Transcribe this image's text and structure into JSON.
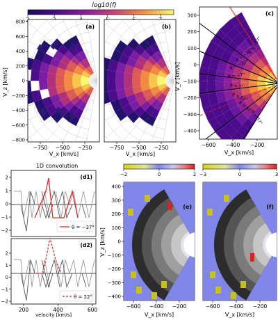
{
  "colors": {
    "viridis_like": [
      "#1a0b5b",
      "#4a0c8a",
      "#7b1ea3",
      "#b1307c",
      "#dc5b52",
      "#f2923a",
      "#f7d33b",
      "#f9f871"
    ],
    "diverge_neg": [
      "#2a2a2a",
      "#6a6a6a",
      "#b5b5b5",
      "#dddddd",
      "#e9e9f8",
      "#7070e0"
    ],
    "diverge_pos": [
      "#7070e0",
      "#d8d878",
      "#d4c832",
      "#c8b200"
    ],
    "accent_red": "#e02020",
    "bg_purple": "#7f86e8"
  },
  "chart_data": [
    {
      "id": "a",
      "type": "heatmap",
      "panel_label": "(a)",
      "title": "",
      "xlabel": "V_x [km/s]",
      "ylabel": "V_z [km/s]",
      "xticks": [
        "−750",
        "−500",
        "−250"
      ],
      "yticks": [
        "800",
        "600",
        "400",
        "200",
        "0",
        "−200",
        "−400",
        "−600",
        "−800"
      ],
      "xlim": [
        -900,
        -150
      ],
      "ylim": [
        -800,
        800
      ],
      "colorbar": {
        "label": "log10(f)",
        "ticks": [
          "2",
          "3",
          "4",
          "5",
          "6",
          "7"
        ],
        "range": [
          2,
          7.5
        ]
      }
    },
    {
      "id": "b",
      "type": "heatmap",
      "panel_label": "(b)",
      "xlabel": "V_x [km/s]",
      "xticks": [
        "−750",
        "−500",
        "−250"
      ]
    },
    {
      "id": "c",
      "type": "heatmap",
      "panel_label": "(c)",
      "xlabel": "V_x [km/s]",
      "ylabel": "V_z [km/s]",
      "xticks": [
        "−600",
        "−400",
        "−200"
      ],
      "yticks": [
        "300",
        "200",
        "100",
        "0",
        "−100",
        "−200",
        "−300",
        "−400"
      ],
      "angle_labels": [
        "θ = −57°",
        "θ = −37°",
        "θ = −22°",
        "θ = −7°",
        "θ = 7°",
        "θ = 22°",
        "θ = 37°",
        "θ = 57°"
      ]
    },
    {
      "id": "d1",
      "type": "line",
      "title": "1D convolution",
      "panel_label": "(d1)",
      "yticks": [
        "2",
        "1",
        "0",
        "−1",
        "−2"
      ],
      "ylim": [
        -2.2,
        2.2
      ],
      "legend": "θ = −37°",
      "legend_position": "bottom-right"
    },
    {
      "id": "d2",
      "type": "line",
      "panel_label": "(d2)",
      "xlabel": "velocity [km/s]",
      "xticks": [
        "200",
        "400",
        "600"
      ],
      "xlim": [
        150,
        600
      ],
      "yticks": [
        "2",
        "1",
        "0",
        "−1",
        "−2"
      ],
      "ylim": [
        -2.2,
        3.2
      ],
      "legend": "θ = 22°",
      "legend_position": "bottom-right"
    },
    {
      "id": "e",
      "type": "heatmap",
      "panel_label": "(e)",
      "xlabel": "V_x [km/s]",
      "ylabel": "V_z [km/s]",
      "xticks": [
        "−600",
        "−400",
        "−200"
      ],
      "yticks": [
        "400",
        "300",
        "200",
        "100",
        "0",
        "−100",
        "−200",
        "−300",
        "−400"
      ],
      "colorbar": {
        "ticks": [
          "−2",
          "0",
          "2"
        ],
        "range": [
          -2,
          2
        ]
      }
    },
    {
      "id": "f",
      "type": "heatmap",
      "panel_label": "(f)",
      "xlabel": "V_x [km/s]",
      "xticks": [
        "−600",
        "−400",
        "−200"
      ],
      "colorbar": {
        "ticks": [
          "−3",
          "0",
          "3"
        ],
        "range": [
          -3,
          3
        ]
      }
    }
  ]
}
